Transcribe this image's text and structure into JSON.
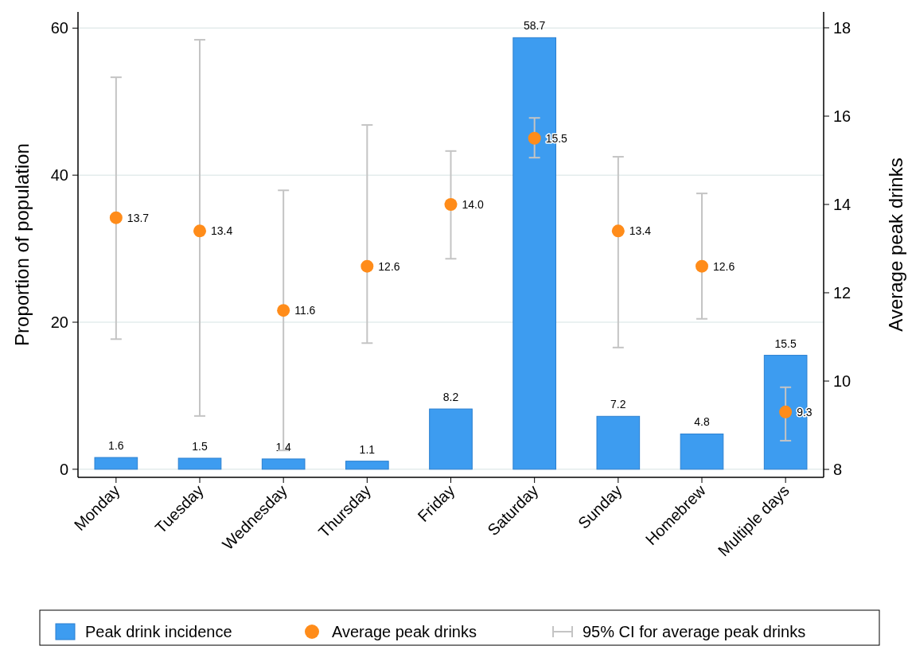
{
  "chart_data": {
    "type": "bar",
    "categories": [
      "Monday",
      "Tuesday",
      "Wednesday",
      "Thursday",
      "Friday",
      "Saturday",
      "Sunday",
      "Homebrew",
      "Multiple days"
    ],
    "ylabel": "Proportion of population",
    "y2label": "Average peak drinks",
    "ylim": [
      -1.1,
      62.2
    ],
    "yticks": [
      0,
      20,
      40,
      60
    ],
    "y2lim": [
      7.82,
      18.36
    ],
    "y2ticks": [
      8,
      10,
      12,
      14,
      16,
      18
    ],
    "grid": "y",
    "legend": "bottom",
    "data_labels": true,
    "marker": "circle",
    "series": [
      {
        "name": "Peak drink incidence",
        "color": "#3d9cf0",
        "values": [
          1.6,
          1.5,
          1.4,
          1.1,
          8.2,
          58.7,
          7.2,
          4.8,
          15.5
        ]
      },
      {
        "name": "Average peak drinks",
        "type": "scatter",
        "axis": "y2",
        "color": "#ff8c1a",
        "values": [
          13.7,
          13.4,
          11.6,
          12.6,
          14.0,
          15.5,
          13.4,
          12.6,
          9.3
        ],
        "value_labels": [
          "13.7",
          "13.4",
          "11.6",
          "12.6",
          "14.0",
          "15.5",
          "13.4",
          "12.6",
          "9.3"
        ],
        "errors": [
          [
            10.95,
            16.88
          ],
          [
            9.21,
            17.73
          ],
          [
            8.43,
            14.32
          ],
          [
            10.86,
            15.8
          ],
          [
            12.77,
            15.21
          ],
          [
            15.06,
            15.96
          ],
          [
            10.76,
            15.08
          ],
          [
            11.41,
            14.25
          ],
          [
            8.65,
            9.86
          ]
        ]
      }
    ],
    "annotations": [
      "95% CI for average peak drinks"
    ]
  }
}
